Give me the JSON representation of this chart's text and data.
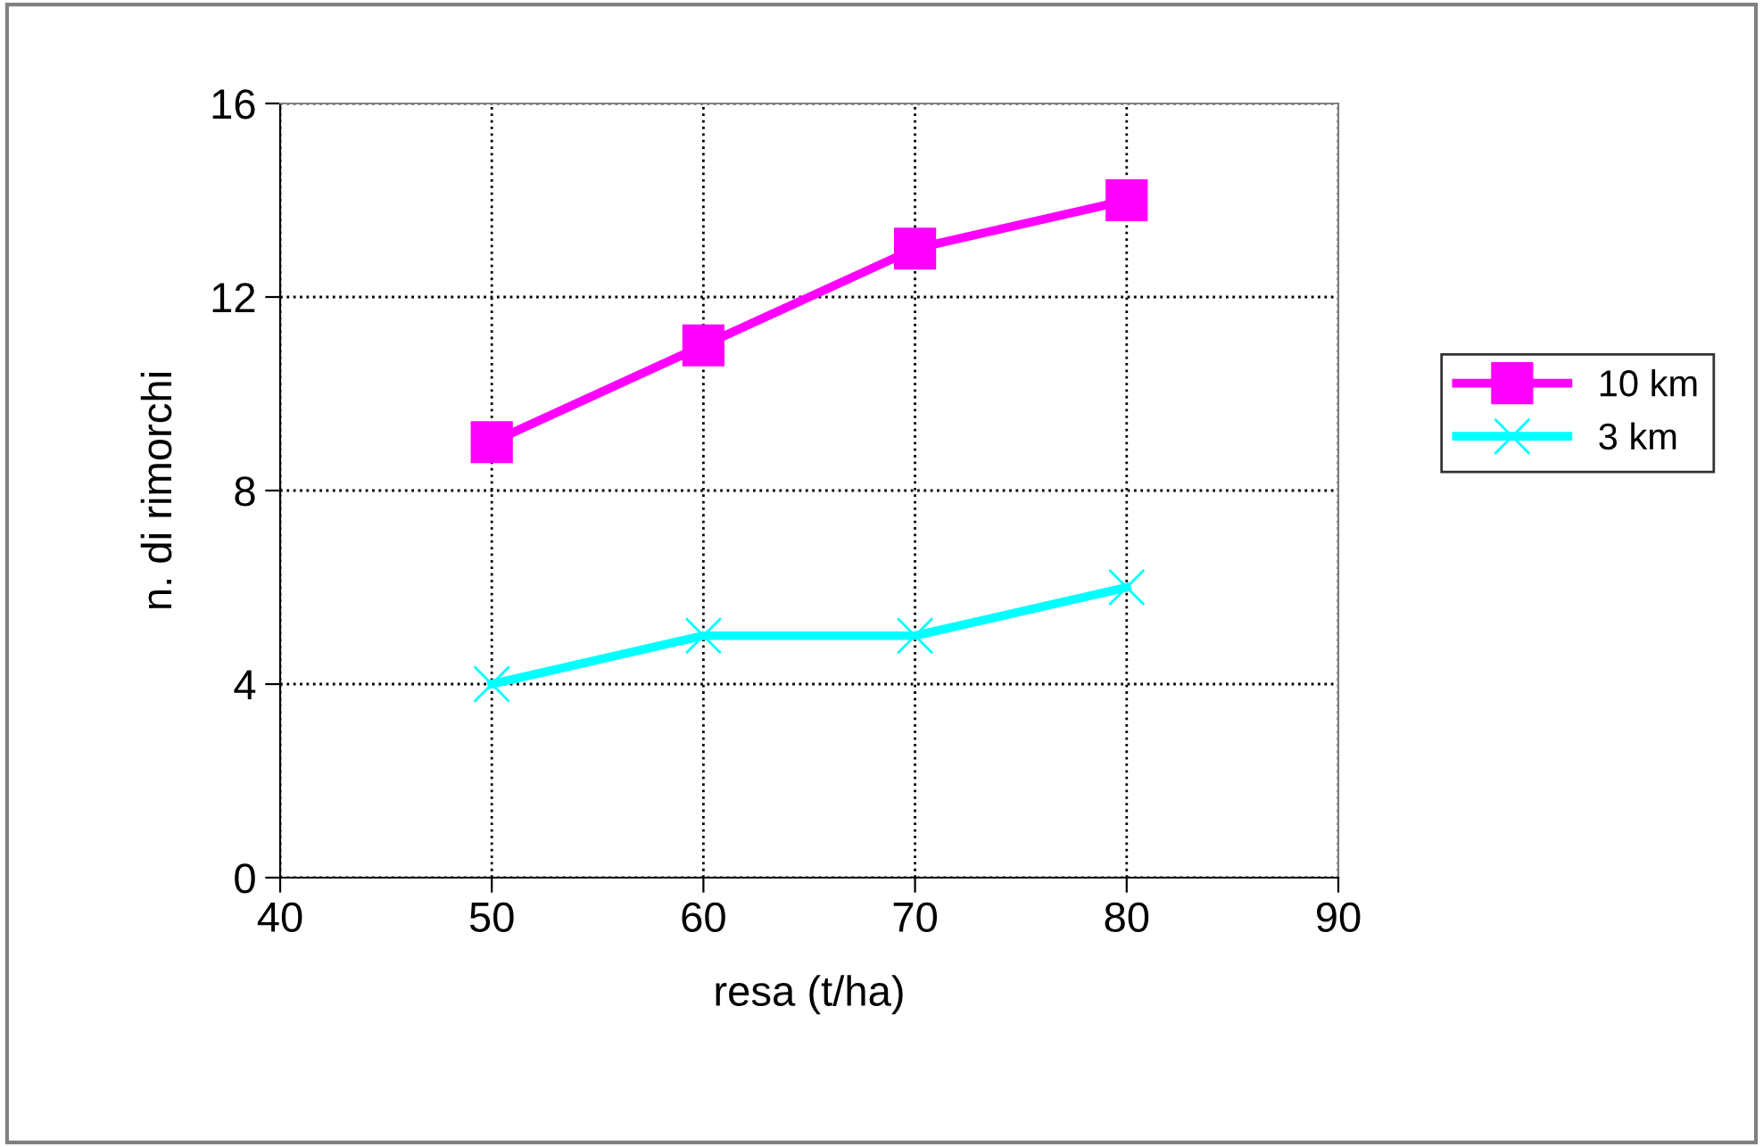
{
  "chart_data": {
    "type": "line",
    "xlabel": "resa (t/ha)",
    "ylabel": "n. di rimorchi",
    "x": [
      50,
      60,
      70,
      80
    ],
    "series": [
      {
        "name": "10 km",
        "color": "#ff00ff",
        "marker": "square",
        "values": [
          9,
          11,
          13,
          14
        ]
      },
      {
        "name": "3 km",
        "color": "#00ffff",
        "marker": "cross",
        "values": [
          4,
          5,
          5,
          6
        ]
      }
    ],
    "xlim": [
      40,
      90
    ],
    "xticks": [
      40,
      50,
      60,
      70,
      80,
      90
    ],
    "ylim": [
      0,
      16
    ],
    "yticks": [
      0,
      4,
      8,
      12,
      16
    ],
    "grid": true,
    "legend": "right",
    "line_style": "solid"
  }
}
